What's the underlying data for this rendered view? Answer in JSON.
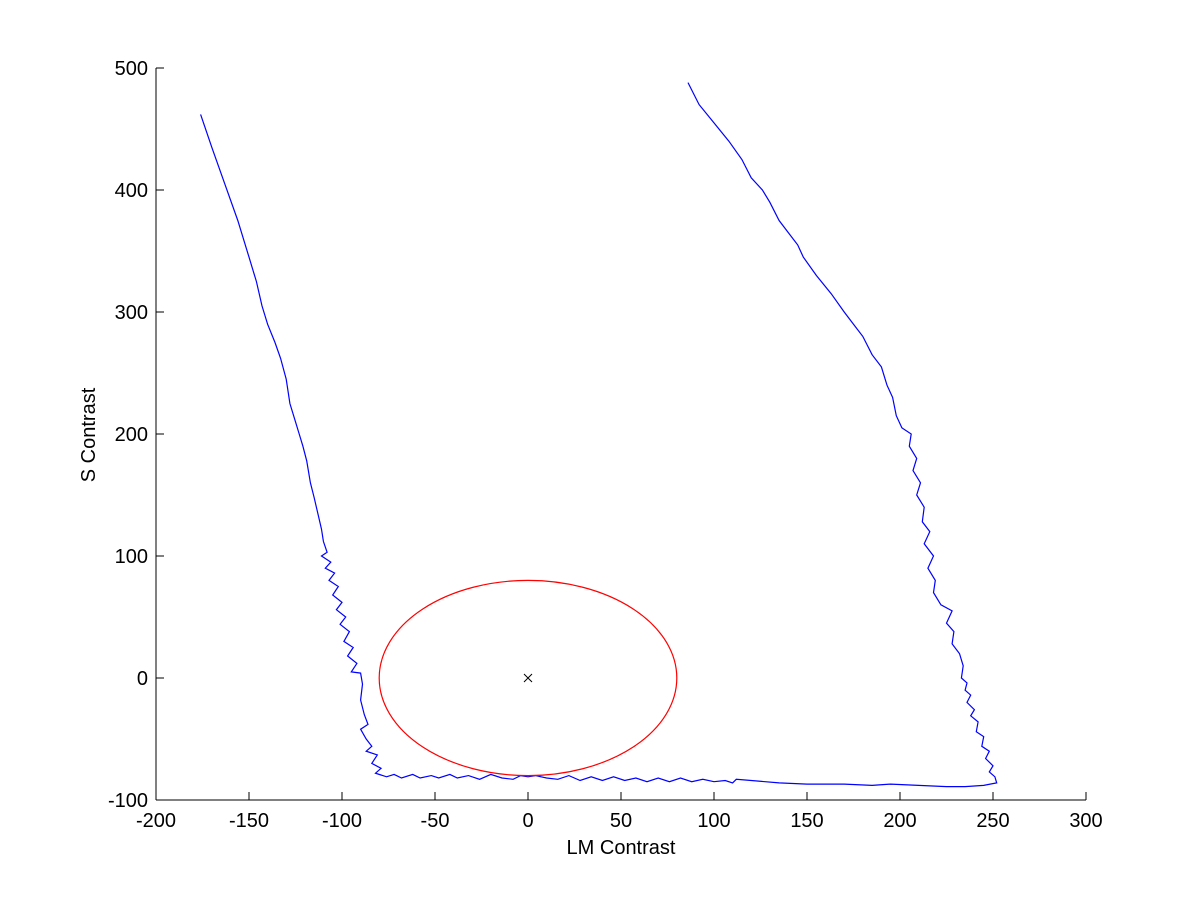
{
  "chart_data": {
    "type": "line",
    "title": "",
    "xlabel": "LM Contrast",
    "ylabel": "S Contrast",
    "xlim": [
      -200,
      300
    ],
    "ylim": [
      -100,
      500
    ],
    "xticks": [
      -200,
      -150,
      -100,
      -50,
      0,
      50,
      100,
      150,
      200,
      250,
      300
    ],
    "yticks": [
      -100,
      0,
      100,
      200,
      300,
      400,
      500
    ],
    "grid": false,
    "series": [
      {
        "kind": "line",
        "color": "#0000ff",
        "points": [
          [
            -176,
            462
          ],
          [
            -170,
            435
          ],
          [
            -163,
            405
          ],
          [
            -156,
            375
          ],
          [
            -150,
            345
          ],
          [
            -146,
            325
          ],
          [
            -143,
            305
          ],
          [
            -140,
            290
          ],
          [
            -136,
            275
          ],
          [
            -133,
            262
          ],
          [
            -130,
            245
          ],
          [
            -128,
            225
          ],
          [
            -125,
            210
          ],
          [
            -123,
            200
          ],
          [
            -121,
            190
          ],
          [
            -119,
            178
          ],
          [
            -117,
            160
          ],
          [
            -115,
            148
          ],
          [
            -113,
            135
          ],
          [
            -111,
            122
          ],
          [
            -110,
            112
          ],
          [
            -108,
            103
          ],
          [
            -111,
            100
          ],
          [
            -106,
            95
          ],
          [
            -109,
            90
          ],
          [
            -104,
            86
          ],
          [
            -107,
            80
          ],
          [
            -102,
            75
          ],
          [
            -105,
            68
          ],
          [
            -100,
            62
          ],
          [
            -103,
            56
          ],
          [
            -98,
            50
          ],
          [
            -101,
            44
          ],
          [
            -96,
            38
          ],
          [
            -99,
            30
          ],
          [
            -94,
            25
          ],
          [
            -97,
            18
          ],
          [
            -92,
            12
          ],
          [
            -95,
            5
          ],
          [
            -90,
            4
          ],
          [
            -89,
            -5
          ],
          [
            -90,
            -18
          ],
          [
            -88,
            -30
          ],
          [
            -86,
            -38
          ],
          [
            -90,
            -42
          ],
          [
            -87,
            -50
          ],
          [
            -84,
            -56
          ],
          [
            -87,
            -60
          ],
          [
            -81,
            -63
          ],
          [
            -84,
            -70
          ],
          [
            -79,
            -74
          ],
          [
            -82,
            -78
          ],
          [
            -76,
            -81
          ],
          [
            -72,
            -79
          ],
          [
            -68,
            -82
          ],
          [
            -62,
            -79
          ],
          [
            -58,
            -82
          ],
          [
            -52,
            -80
          ],
          [
            -48,
            -82
          ],
          [
            -42,
            -79
          ],
          [
            -38,
            -82
          ],
          [
            -32,
            -80
          ],
          [
            -26,
            -83
          ],
          [
            -20,
            -79
          ],
          [
            -14,
            -82
          ],
          [
            -8,
            -83
          ],
          [
            -4,
            -80
          ],
          [
            0,
            -81
          ],
          [
            4,
            -80
          ],
          [
            10,
            -82
          ],
          [
            16,
            -83
          ],
          [
            22,
            -80
          ],
          [
            28,
            -84
          ],
          [
            34,
            -81
          ],
          [
            40,
            -84
          ],
          [
            46,
            -81
          ],
          [
            52,
            -84
          ],
          [
            58,
            -82
          ],
          [
            64,
            -85
          ],
          [
            70,
            -82
          ],
          [
            76,
            -85
          ],
          [
            82,
            -82
          ],
          [
            88,
            -85
          ],
          [
            94,
            -83
          ],
          [
            100,
            -85
          ],
          [
            106,
            -84
          ],
          [
            110,
            -86
          ],
          [
            112,
            -83
          ],
          [
            120,
            -84
          ],
          [
            135,
            -86
          ],
          [
            150,
            -87
          ],
          [
            170,
            -87
          ],
          [
            185,
            -88
          ],
          [
            195,
            -87
          ],
          [
            210,
            -88
          ],
          [
            225,
            -89
          ],
          [
            235,
            -89
          ],
          [
            245,
            -88
          ],
          [
            252,
            -86
          ],
          [
            251,
            -81
          ],
          [
            248,
            -77
          ],
          [
            250,
            -72
          ],
          [
            246,
            -66
          ],
          [
            248,
            -60
          ],
          [
            244,
            -56
          ],
          [
            245,
            -48
          ],
          [
            241,
            -44
          ],
          [
            242,
            -36
          ],
          [
            238,
            -31
          ],
          [
            240,
            -26
          ],
          [
            236,
            -20
          ],
          [
            238,
            -14
          ],
          [
            235,
            -10
          ],
          [
            236,
            -4
          ],
          [
            233,
            0
          ],
          [
            234,
            10
          ],
          [
            232,
            20
          ],
          [
            228,
            28
          ],
          [
            229,
            38
          ],
          [
            225,
            45
          ],
          [
            228,
            55
          ],
          [
            222,
            60
          ],
          [
            218,
            70
          ],
          [
            219,
            80
          ],
          [
            215,
            90
          ],
          [
            218,
            100
          ],
          [
            213,
            110
          ],
          [
            216,
            120
          ],
          [
            212,
            128
          ],
          [
            213,
            140
          ],
          [
            209,
            150
          ],
          [
            211,
            160
          ],
          [
            207,
            170
          ],
          [
            209,
            180
          ],
          [
            205,
            190
          ],
          [
            206,
            200
          ],
          [
            201,
            205
          ],
          [
            198,
            215
          ],
          [
            196,
            230
          ],
          [
            193,
            240
          ],
          [
            190,
            255
          ],
          [
            185,
            265
          ],
          [
            180,
            280
          ],
          [
            175,
            290
          ],
          [
            170,
            300
          ],
          [
            163,
            315
          ],
          [
            155,
            330
          ],
          [
            148,
            345
          ],
          [
            145,
            355
          ],
          [
            140,
            365
          ],
          [
            135,
            375
          ],
          [
            130,
            390
          ],
          [
            126,
            400
          ],
          [
            120,
            410
          ],
          [
            115,
            425
          ],
          [
            108,
            440
          ],
          [
            100,
            455
          ],
          [
            92,
            470
          ],
          [
            86,
            488
          ]
        ]
      },
      {
        "kind": "ellipse",
        "color": "#ff0000",
        "center": [
          0,
          0
        ],
        "rx": 80,
        "ry": 80
      },
      {
        "kind": "marker",
        "marker": "x",
        "color": "#000000",
        "points": [
          [
            0,
            0
          ]
        ]
      }
    ]
  }
}
